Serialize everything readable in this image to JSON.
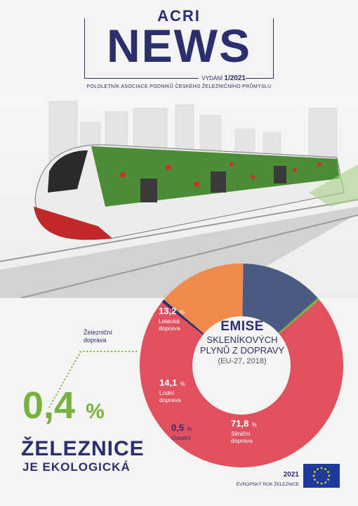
{
  "masthead": {
    "brand": "ACRI",
    "title": "NEWS",
    "issue_label": "VYDÁNÍ",
    "issue_number": "1/2021",
    "subtitle": "POLOLETNÍK ASOCIACE PODNIKŮ ČESKÉHO ŽELEZNIČNÍHO PRŮMYSLU"
  },
  "chart_data": {
    "type": "pie",
    "title": "EMISE",
    "subtitle_lines": [
      "SKLENÍKOVÝCH",
      "PLYNŮ Z DOPRAVY"
    ],
    "note": "(EU-27, 2018)",
    "slices": [
      {
        "label_lines": [
          "Silniční",
          "doprava"
        ],
        "value": 71.8,
        "value_text": "71,8",
        "color": "#e0505e"
      },
      {
        "label_lines": [
          "Lodní",
          "doprava"
        ],
        "value": 14.1,
        "value_text": "14,1",
        "color": "#ef8a4a"
      },
      {
        "label_lines": [
          "Letecká",
          "doprava"
        ],
        "value": 13.2,
        "value_text": "13,2",
        "color": "#4a5a80"
      },
      {
        "label_lines": [
          "Ostatní"
        ],
        "value": 0.5,
        "value_text": "0,5",
        "color": "#2c2f6e"
      },
      {
        "label_lines": [
          "Železniční",
          "doprava"
        ],
        "value": 0.4,
        "value_text": "0,4",
        "color": "#7ab040"
      }
    ],
    "unit": "%"
  },
  "headline": {
    "value": "0,4",
    "unit": "%",
    "line1": "ŽELEZNICE",
    "line2": "JE EKOLOGICKÁ"
  },
  "footer": {
    "year": "2021",
    "caption": "EVROPSKÝ ROK ŽELEZNICE"
  },
  "colors": {
    "navy": "#2c2f6e",
    "green": "#7ab040",
    "eu_blue": "#1e3a9a",
    "eu_star": "#f7d117"
  }
}
